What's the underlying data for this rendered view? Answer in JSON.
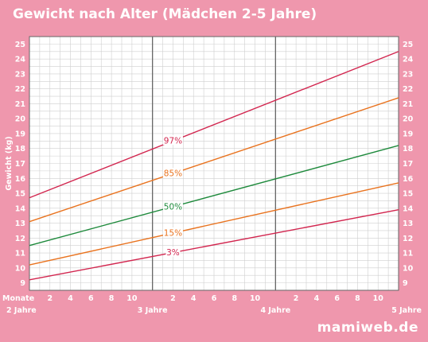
{
  "chart_data": {
    "type": "line",
    "title": "Gewicht nach Alter (Mädchen 2-5 Jahre)",
    "ylabel": "Gewicht (kg)",
    "xlabel": "Monate",
    "x_unit_label": "Monate",
    "xlim": [
      24,
      60
    ],
    "ylim": [
      8.5,
      25.5
    ],
    "y_ticks": [
      "9",
      "10",
      "11",
      "12",
      "13",
      "14",
      "15",
      "16",
      "17",
      "18",
      "19",
      "20",
      "21",
      "22",
      "23",
      "24",
      "25"
    ],
    "month_ticks": [
      "2",
      "4",
      "6",
      "8",
      "10"
    ],
    "year_labels": [
      "2 Jahre",
      "3 Jahre",
      "4 Jahre",
      "5 Jahre"
    ],
    "x": [
      24,
      60
    ],
    "series": [
      {
        "name": "97%",
        "values": [
          14.7,
          24.5
        ],
        "color": "#d2264f"
      },
      {
        "name": "85%",
        "values": [
          13.1,
          21.4
        ],
        "color": "#e9731f"
      },
      {
        "name": "50%",
        "values": [
          11.5,
          18.2
        ],
        "color": "#1e8a3c"
      },
      {
        "name": "15%",
        "values": [
          10.2,
          15.7
        ],
        "color": "#e9731f"
      },
      {
        "name": "3%",
        "values": [
          9.2,
          13.9
        ],
        "color": "#d2264f"
      }
    ],
    "grid": true,
    "colors": {
      "background": "#ef97ad",
      "plot": "#ffffff",
      "grid": "#cfcfcf",
      "year_line": "#666666"
    }
  },
  "brand": {
    "name": "mamiweb.de"
  }
}
